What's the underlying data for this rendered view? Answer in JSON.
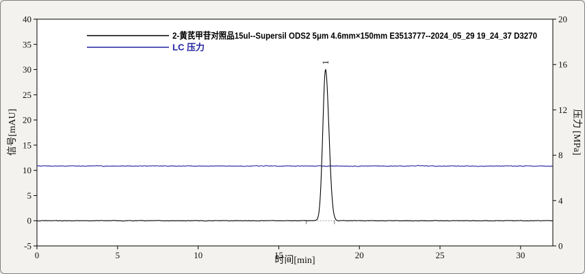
{
  "window": {
    "background": "#f3f2ee",
    "border_color": "#7f7f7f",
    "plot_background": "#ffffff",
    "frame_color": "#000000"
  },
  "legend": {
    "signal": {
      "label": "2-黄芪甲苷对照品15ul--Supersil ODS2 5μm  4.6mm×150mm   E3513777--2024_05_29 19_24_37 D3270",
      "color": "#000000"
    },
    "pressure": {
      "label": "LC 压力",
      "color": "#2121a0"
    }
  },
  "chart_data": {
    "type": "line",
    "title": "",
    "x_axis": {
      "label": "时间[min]",
      "range": [
        0,
        32
      ],
      "ticks": [
        0,
        5,
        10,
        15,
        20,
        25,
        30
      ]
    },
    "y_axis_left": {
      "label": "信号[mAU]",
      "range": [
        -5,
        40
      ],
      "ticks": [
        -5,
        0,
        5,
        10,
        15,
        20,
        25,
        30,
        35,
        40
      ]
    },
    "y_axis_right": {
      "label": "压力 [MPa]",
      "range": [
        0,
        20
      ],
      "ticks": [
        0,
        4,
        8,
        12,
        16,
        20
      ]
    },
    "grid": false,
    "legend_position": "top-left-inside",
    "series": [
      {
        "name": "signal",
        "legend": "2-黄芪甲苷对照品15ul--Supersil ODS2 5μm  4.6mm×150mm   E3513777--2024_05_29 19_24_37 D3270",
        "color": "#000000",
        "axis": "left",
        "baseline_mAU": 0,
        "noise_mAU": 0.12,
        "peaks": [
          {
            "id": "1",
            "label": "1",
            "retention_min": 17.9,
            "height_mAU": 30,
            "sigma_left_min": 0.17,
            "sigma_right_min": 0.21,
            "integration_start_min": 16.7,
            "integration_end_min": 18.45
          }
        ]
      },
      {
        "name": "lc_pressure",
        "legend": "LC 压力",
        "color": "#2121a0",
        "axis": "right",
        "value_MPa": 7.05,
        "noise_MPa": 0.07
      }
    ]
  }
}
